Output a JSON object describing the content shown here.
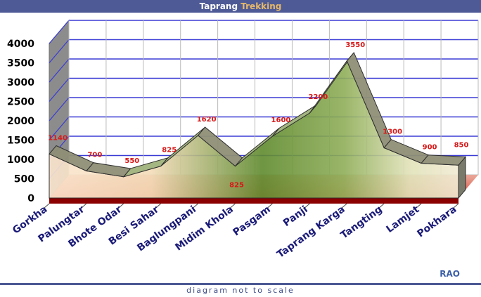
{
  "header": {
    "title_main": "Taprang",
    "title_accent": "Trekking",
    "title_accent_color": "#e6b86a",
    "bar_color": "#4e5a96"
  },
  "footer": {
    "note": "diagram not to scale",
    "credit": "RAO"
  },
  "chart_data": {
    "type": "area",
    "title": "Taprang Trekking",
    "categories": [
      "Gorkha",
      "Palungtar",
      "Bhote Odar",
      "Besi Sahar",
      "Baglungpani",
      "Midim Khola",
      "Pasgam",
      "Panji",
      "Taprang Karga",
      "Tangting",
      "Lamjet",
      "Pokhara"
    ],
    "series": [
      {
        "values": [
          1140,
          700,
          550,
          825,
          1620,
          825,
          1600,
          2200,
          3550,
          1300,
          900,
          850
        ]
      }
    ],
    "y_ticks": [
      0,
      500,
      1000,
      1500,
      2000,
      2500,
      3000,
      3500,
      4000
    ],
    "ylim": [
      0,
      4000
    ],
    "xlabel": "",
    "ylabel": "",
    "grid": true,
    "style": "3d",
    "colors": {
      "grid": "#3b3bd6",
      "floor": "#c00000",
      "data_labels": "#d81818",
      "axis_labels": "#1a1a78",
      "area_dark": "#5e8a2a",
      "area_light": "#fbe6cf"
    }
  }
}
